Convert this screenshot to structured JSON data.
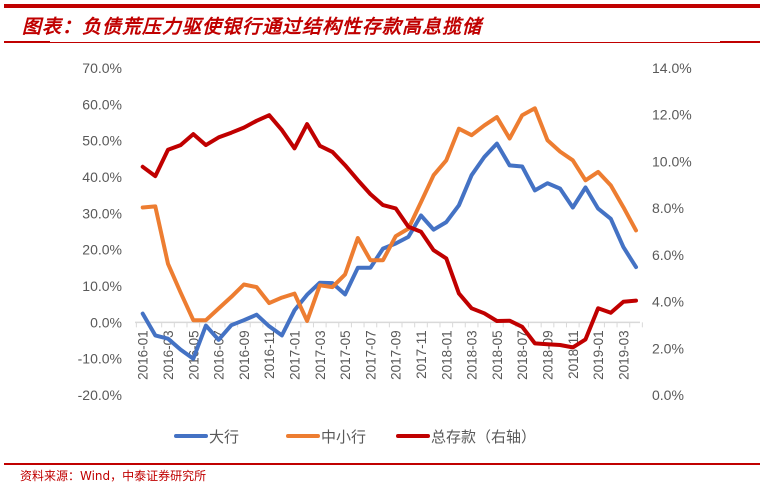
{
  "title": "图表：负债荒压力驱使银行通过结构性存款高息揽储",
  "source": "资料来源：Wind，中泰证券研究所",
  "colors": {
    "accent": "#c00000",
    "blue": "#4472c4",
    "orange": "#ed7d31",
    "red": "#c00000"
  },
  "chart_data": {
    "type": "line",
    "title": "负债荒压力驱使银行通过结构性存款高息揽储",
    "x": [
      "2016-01",
      "2016-02",
      "2016-03",
      "2016-04",
      "2016-05",
      "2016-06",
      "2016-07",
      "2016-08",
      "2016-09",
      "2016-10",
      "2016-11",
      "2016-12",
      "2017-01",
      "2017-02",
      "2017-03",
      "2017-04",
      "2017-05",
      "2017-06",
      "2017-07",
      "2017-08",
      "2017-09",
      "2017-10",
      "2017-11",
      "2017-12",
      "2018-01",
      "2018-02",
      "2018-03",
      "2018-04",
      "2018-05",
      "2018-06",
      "2018-07",
      "2018-08",
      "2018-09",
      "2018-10",
      "2018-11",
      "2018-12",
      "2019-01",
      "2019-02",
      "2019-03",
      "2019-04"
    ],
    "x_tick_labels": [
      "2016-01",
      "2016-03",
      "2016-05",
      "2016-07",
      "2016-09",
      "2016-11",
      "2017-01",
      "2017-03",
      "2017-05",
      "2017-07",
      "2017-09",
      "2017-11",
      "2018-01",
      "2018-03",
      "2018-05",
      "2018-07",
      "2018-09",
      "2018-11",
      "2019-01",
      "2019-03"
    ],
    "y_left": {
      "ticks": [
        "70.0%",
        "60.0%",
        "50.0%",
        "40.0%",
        "30.0%",
        "20.0%",
        "10.0%",
        "0.0%",
        "-10.0%",
        "-20.0%"
      ],
      "ylim": [
        -20,
        70
      ]
    },
    "y_right": {
      "ticks": [
        "14.0%",
        "12.0%",
        "10.0%",
        "8.0%",
        "6.0%",
        "4.0%",
        "2.0%",
        "0.0%"
      ],
      "ylim": [
        0,
        14
      ]
    },
    "legend_position": "bottom",
    "series": [
      {
        "name": "大行",
        "axis": "left",
        "color": "#4472c4",
        "values": [
          2.4,
          -3.6,
          -4.5,
          -7.5,
          -10,
          -0.9,
          -4.8,
          -0.8,
          0.6,
          2.1,
          -1.1,
          -3.6,
          3.3,
          7.6,
          10.9,
          10.8,
          7.7,
          15,
          15,
          20.3,
          21.7,
          23.5,
          29.4,
          25.5,
          27.6,
          32.2,
          40.5,
          45.5,
          49.2,
          43.2,
          42.9,
          36.3,
          38.3,
          36.8,
          31.6,
          37.1,
          31.3,
          28.5,
          20.7,
          15.2
        ]
      },
      {
        "name": "中小行",
        "axis": "left",
        "color": "#ed7d31",
        "values": [
          31.6,
          31.9,
          16.1,
          8.2,
          0.6,
          0.6,
          3.8,
          7,
          10.4,
          9.7,
          5.3,
          6.8,
          7.9,
          0.4,
          10.2,
          9.7,
          13.2,
          23.2,
          17.1,
          17.1,
          23.7,
          25.8,
          33.1,
          40.5,
          44.6,
          53.3,
          51.5,
          54.2,
          56.5,
          50.6,
          57,
          58.9,
          50.1,
          47,
          44.6,
          39.1,
          41.4,
          37.7,
          31.7,
          25.3
        ]
      },
      {
        "name": "总存款（右轴）",
        "axis": "right",
        "color": "#c00000",
        "values": [
          9.77,
          9.37,
          10.5,
          10.7,
          11.17,
          10.7,
          11.03,
          11.23,
          11.45,
          11.74,
          11.98,
          11.34,
          10.56,
          11.6,
          10.67,
          10.41,
          9.84,
          9.2,
          8.6,
          8.13,
          7.99,
          7.2,
          6.99,
          6.2,
          5.85,
          4.35,
          3.71,
          3.5,
          3.17,
          3.18,
          2.92,
          2.21,
          2.17,
          2.14,
          2.04,
          2.38,
          3.71,
          3.52,
          3.99,
          4.04
        ]
      }
    ]
  }
}
